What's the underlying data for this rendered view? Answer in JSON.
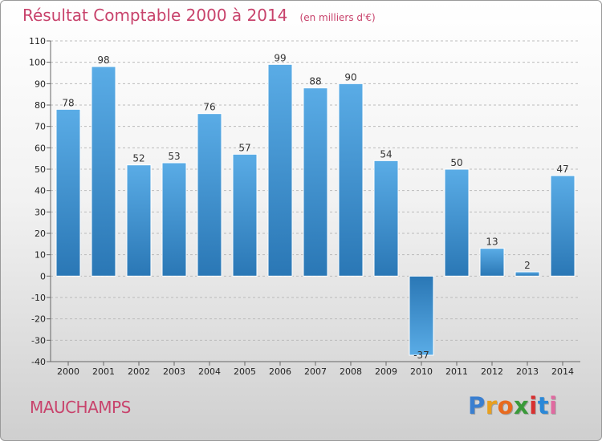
{
  "header": {
    "title": "Résultat Comptable 2000 à 2014",
    "subtitle": "(en milliers d'€)"
  },
  "footer": {
    "commune": "MAUCHAMPS",
    "logo_letters": [
      "P",
      "r",
      "o",
      "x",
      "i",
      "t",
      "i"
    ],
    "logo_colors": [
      "#3a7fd0",
      "#e8a020",
      "#e86a1e",
      "#3a9a3a",
      "#d83030",
      "#2a88d8",
      "#e06aa0"
    ]
  },
  "colors": {
    "title": "#c8436c",
    "bar_light": "#5aace6",
    "bar_dark": "#2a77b5",
    "grid": "#bbbbbb"
  },
  "chart_data": {
    "type": "bar",
    "title": "Résultat Comptable 2000 à 2014",
    "subtitle": "(en milliers d'€)",
    "categories": [
      "2000",
      "2001",
      "2002",
      "2003",
      "2004",
      "2005",
      "2006",
      "2007",
      "2008",
      "2009",
      "2010",
      "2011",
      "2012",
      "2013",
      "2014"
    ],
    "values": [
      78,
      98,
      52,
      53,
      76,
      57,
      99,
      88,
      90,
      54,
      -37,
      50,
      13,
      2,
      47
    ],
    "ylim": [
      -40,
      110
    ],
    "yticks": [
      110,
      100,
      90,
      80,
      70,
      60,
      50,
      40,
      30,
      20,
      10,
      0,
      -10,
      -20,
      -30,
      -40
    ],
    "grid": "horizontal dashed",
    "data_labels": true
  }
}
